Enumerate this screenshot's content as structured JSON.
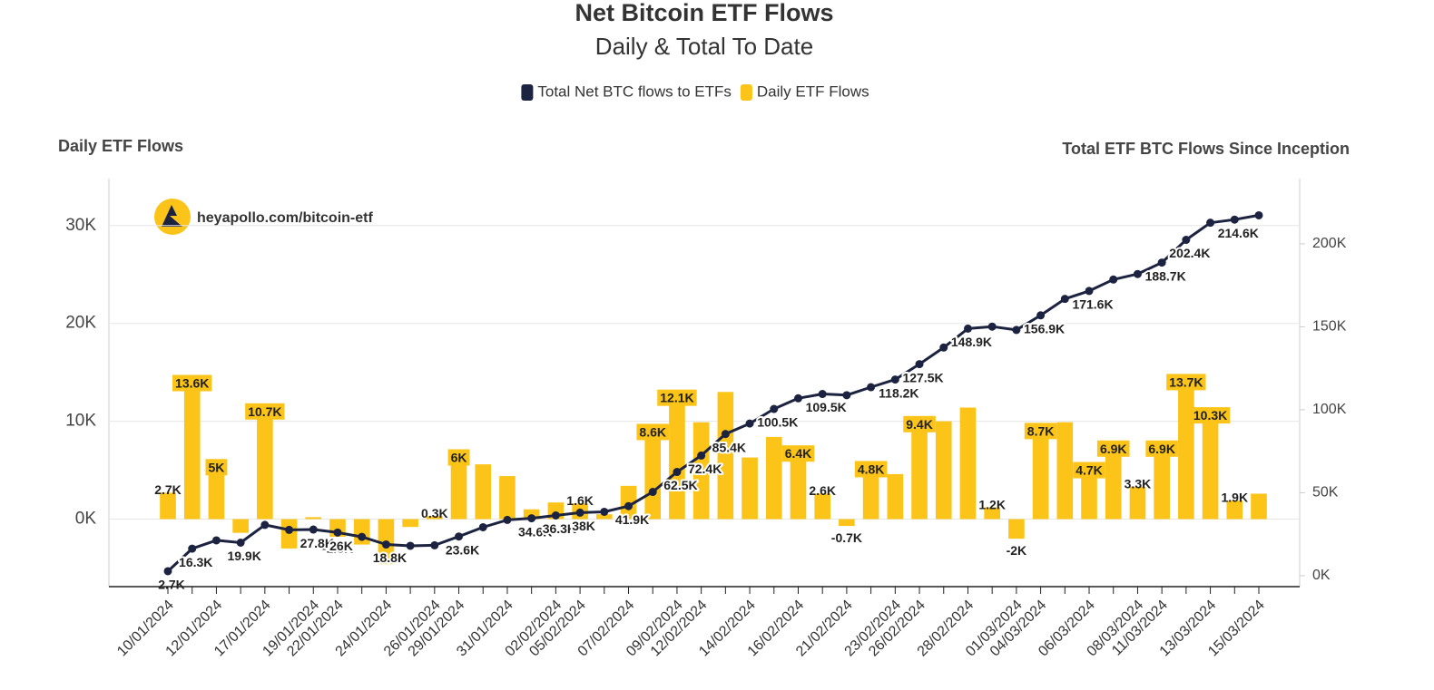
{
  "chart_data": {
    "type": "bar",
    "title": "Net Bitcoin ETF Flows",
    "subtitle": "Daily & Total To Date",
    "y_label": "Daily ETF Flows",
    "y2_label": "Total ETF BTC Flows Since Inception",
    "watermark": "heyapollo.com/bitcoin-etf",
    "categories": [
      "10/01/2024",
      null,
      "12/01/2024",
      null,
      "17/01/2024",
      null,
      "19/01/2024",
      "22/01/2024",
      null,
      "24/01/2024",
      null,
      "26/01/2024",
      "29/01/2024",
      null,
      "31/01/2024",
      null,
      "02/02/2024",
      "05/02/2024",
      null,
      "07/02/2024",
      null,
      "09/02/2024",
      "12/02/2024",
      null,
      "14/02/2024",
      null,
      "16/02/2024",
      null,
      "21/02/2024",
      null,
      "23/02/2024",
      "26/02/2024",
      null,
      "28/02/2024",
      null,
      "01/03/2024",
      "04/03/2024",
      null,
      "06/03/2024",
      null,
      "08/03/2024",
      "11/03/2024",
      null,
      "13/03/2024",
      null,
      "15/03/2024"
    ],
    "series": [
      {
        "name": "Total Net BTC flows to ETFs",
        "type": "line",
        "axis": "y2",
        "color": "#1c2340",
        "values": [
          2.7,
          16.3,
          21.3,
          19.9,
          30.6,
          27.6,
          27.8,
          26,
          23.4,
          18.8,
          18.0,
          18.3,
          23.6,
          29.2,
          33.6,
          34.6,
          36.3,
          38,
          38.5,
          41.9,
          50.5,
          62.5,
          72.4,
          85.4,
          91.7,
          100.5,
          106.9,
          109.5,
          108.8,
          113.6,
          118.2,
          127.5,
          137.5,
          148.9,
          150.1,
          148.1,
          156.9,
          166.8,
          171.6,
          178.5,
          181.8,
          188.7,
          202.4,
          212.7,
          214.6,
          217.2
        ],
        "value_labels": [
          "2.7K",
          "16.3K",
          null,
          "19.9K",
          null,
          null,
          "27.8K",
          "26K",
          null,
          "18.8K",
          null,
          null,
          "23.6K",
          null,
          null,
          "34.6K",
          "36.3K",
          "38K",
          null,
          "41.9K",
          null,
          "62.5K",
          "72.4K",
          "85.4K",
          null,
          "100.5K",
          null,
          "109.5K",
          null,
          null,
          "118.2K",
          "127.5K",
          null,
          "148.9K",
          null,
          null,
          "156.9K",
          null,
          "171.6K",
          null,
          null,
          "188.7K",
          "202.4K",
          null,
          "214.6K",
          null
        ]
      },
      {
        "name": "Daily ETF Flows",
        "type": "bar",
        "color": "#fcc419",
        "values": [
          2.7,
          13.6,
          5,
          -1.4,
          10.7,
          -3,
          0.2,
          -1.8,
          -2.6,
          -4.6,
          -0.8,
          0.3,
          6,
          5.6,
          4.4,
          1.0,
          1.7,
          1.6,
          0.5,
          3.4,
          8.6,
          12.1,
          9.9,
          13.0,
          6.3,
          8.4,
          6.4,
          2.6,
          -0.7,
          4.8,
          4.6,
          9.4,
          10.0,
          11.4,
          1.2,
          -2,
          8.7,
          9.9,
          4.7,
          6.9,
          3.3,
          6.9,
          13.7,
          10.3,
          1.9,
          2.6
        ],
        "value_labels": [
          "2.7K",
          "13.6K",
          "5K",
          null,
          "10.7K",
          null,
          null,
          "-1.8K",
          null,
          null,
          null,
          "0.3K",
          "6K",
          null,
          null,
          null,
          null,
          "1.6K",
          null,
          null,
          "8.6K",
          "12.1K",
          null,
          null,
          null,
          null,
          "6.4K",
          "2.6K",
          "-0.7K",
          "4.8K",
          null,
          "9.4K",
          null,
          null,
          "1.2K",
          "-2K",
          "8.7K",
          null,
          "4.7K",
          "6.9K",
          "3.3K",
          "6.9K",
          "13.7K",
          "10.3K",
          "1.9K",
          null
        ]
      }
    ],
    "ylim": [
      -6.9,
      34.8
    ],
    "yticks": [
      {
        "value": 0,
        "label": "0K"
      },
      {
        "value": 10,
        "label": "10K"
      },
      {
        "value": 20,
        "label": "20K"
      },
      {
        "value": 30,
        "label": "30K"
      }
    ],
    "y2lim": [
      -6.6,
      239.3
    ],
    "y2ticks": [
      {
        "value": 0,
        "label": "0K"
      },
      {
        "value": 50,
        "label": "50K"
      },
      {
        "value": 100,
        "label": "100K"
      },
      {
        "value": 150,
        "label": "150K"
      },
      {
        "value": 200,
        "label": "200K"
      }
    ],
    "grid": true,
    "legend": "top"
  }
}
